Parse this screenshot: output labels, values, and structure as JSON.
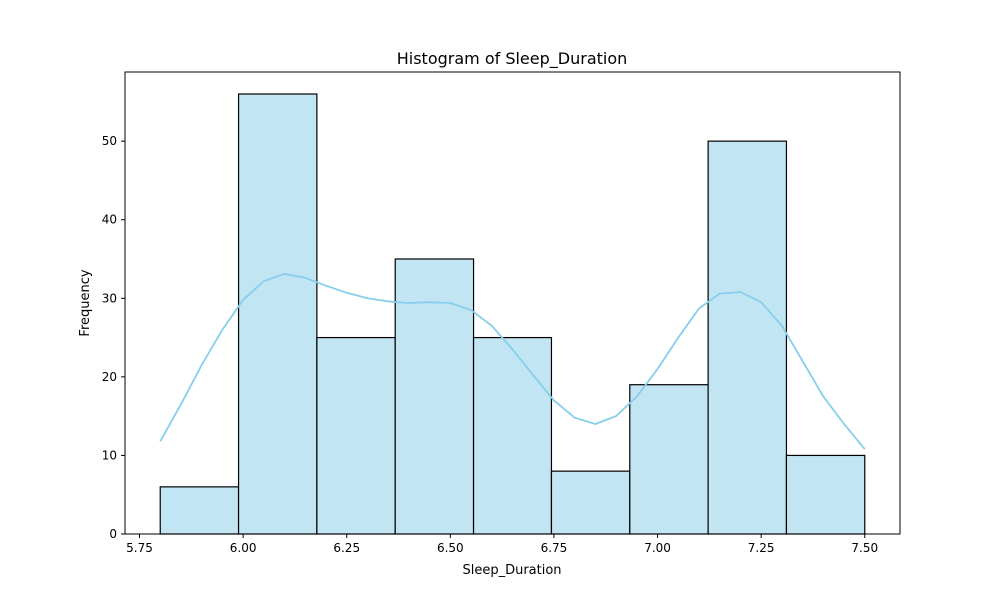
{
  "chart_data": {
    "type": "bar",
    "title": "Histogram of Sleep_Duration",
    "xlabel": "Sleep_Duration",
    "ylabel": "Frequency",
    "xlim": [
      5.715,
      7.585
    ],
    "ylim": [
      0,
      58.8
    ],
    "x_ticks": [
      5.75,
      6.0,
      6.25,
      6.5,
      6.75,
      7.0,
      7.25,
      7.5
    ],
    "x_tick_labels": [
      "5.75",
      "6.00",
      "6.25",
      "6.50",
      "6.75",
      "7.00",
      "7.25",
      "7.50"
    ],
    "y_ticks": [
      0,
      10,
      20,
      30,
      40,
      50
    ],
    "y_tick_labels": [
      "0",
      "10",
      "20",
      "30",
      "40",
      "50"
    ],
    "bin_edges": [
      5.8,
      5.989,
      6.178,
      6.367,
      6.556,
      6.744,
      6.933,
      7.122,
      7.311,
      7.5
    ],
    "values": [
      6,
      56,
      25,
      35,
      25,
      8,
      19,
      50,
      10
    ],
    "kde": {
      "x": [
        5.8,
        5.85,
        5.9,
        5.95,
        6.0,
        6.05,
        6.1,
        6.15,
        6.2,
        6.25,
        6.3,
        6.35,
        6.4,
        6.45,
        6.5,
        6.55,
        6.6,
        6.65,
        6.7,
        6.75,
        6.8,
        6.85,
        6.9,
        6.95,
        7.0,
        7.05,
        7.1,
        7.15,
        7.2,
        7.25,
        7.3,
        7.35,
        7.4,
        7.45,
        7.5
      ],
      "y": [
        11.8,
        16.5,
        21.5,
        26.0,
        29.8,
        32.2,
        33.1,
        32.6,
        31.6,
        30.7,
        30.0,
        29.6,
        29.4,
        29.5,
        29.4,
        28.5,
        26.5,
        23.5,
        20.2,
        17.0,
        14.8,
        14.0,
        15.0,
        17.5,
        21.0,
        25.0,
        28.7,
        30.6,
        30.8,
        29.5,
        26.5,
        22.0,
        17.5,
        14.0,
        10.8
      ]
    },
    "bar_color": "#c2e5f4",
    "line_color": "#87ceeb",
    "grid": false,
    "legend": "none"
  }
}
